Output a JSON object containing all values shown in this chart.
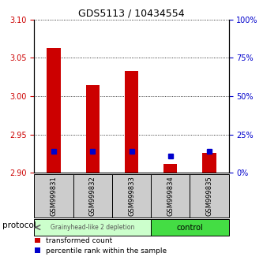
{
  "title": "GDS5113 / 10434554",
  "samples": [
    "GSM999831",
    "GSM999832",
    "GSM999833",
    "GSM999834",
    "GSM999835"
  ],
  "red_bar_bottom": 2.9,
  "red_bar_tops": [
    3.063,
    3.015,
    3.033,
    2.912,
    2.926
  ],
  "blue_marker_values": [
    2.928,
    2.928,
    2.928,
    2.922,
    2.928
  ],
  "ylim": [
    2.9,
    3.1
  ],
  "yticks_left": [
    2.9,
    2.95,
    3.0,
    3.05,
    3.1
  ],
  "yticks_right": [
    0,
    25,
    50,
    75,
    100
  ],
  "ylabel_left_color": "#cc0000",
  "ylabel_right_color": "#0000cc",
  "group1_samples": [
    0,
    1,
    2
  ],
  "group2_samples": [
    3,
    4
  ],
  "group1_label": "Grainyhead-like 2 depletion",
  "group2_label": "control",
  "group1_bg": "#ccffcc",
  "group2_bg": "#44dd44",
  "protocol_label": "protocol",
  "bar_color": "#cc0000",
  "blue_color": "#0000cc",
  "legend_red_label": "transformed count",
  "legend_blue_label": "percentile rank within the sample",
  "bar_width": 0.35,
  "sample_bg_color": "#cccccc"
}
